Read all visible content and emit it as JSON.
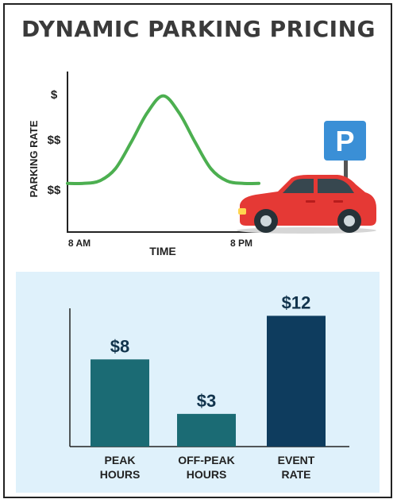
{
  "page_title": "DYNAMIC PARKING PRICING",
  "chart_data": [
    {
      "type": "line",
      "title": "",
      "ylabel": "PARKING RATE",
      "xlabel": "TIME",
      "y_tick_labels": [
        "$$",
        "$$",
        "$"
      ],
      "x_tick_labels": [
        "8 AM",
        "8 PM"
      ],
      "x": [
        8,
        9,
        10,
        11,
        12,
        13,
        14,
        15,
        16,
        17,
        18,
        19,
        20
      ],
      "series": [
        {
          "values": [
            1,
            1,
            1.05,
            1.3,
            1.85,
            2.45,
            2.8,
            2.45,
            1.85,
            1.3,
            1.05,
            1,
            1
          ],
          "color": "#4caf50"
        }
      ],
      "xlim": [
        8,
        20
      ],
      "ylim": [
        0,
        3.3
      ],
      "grid": false
    },
    {
      "type": "bar",
      "title": "",
      "categories": [
        "PEAK HOURS",
        "OFF-PEAK HOURS",
        "EVENT RATE"
      ],
      "values": [
        8,
        3,
        12
      ],
      "value_labels": [
        "$8",
        "$3",
        "$12"
      ],
      "colors": [
        "#1b6b74",
        "#1b6b74",
        "#0e3c5e"
      ],
      "ylim": [
        0,
        14
      ],
      "grid": false
    }
  ],
  "sign": {
    "letter": "P",
    "color": "#3a8fd6"
  },
  "car": {
    "icon": "red-car-icon",
    "color": "#e53935"
  }
}
